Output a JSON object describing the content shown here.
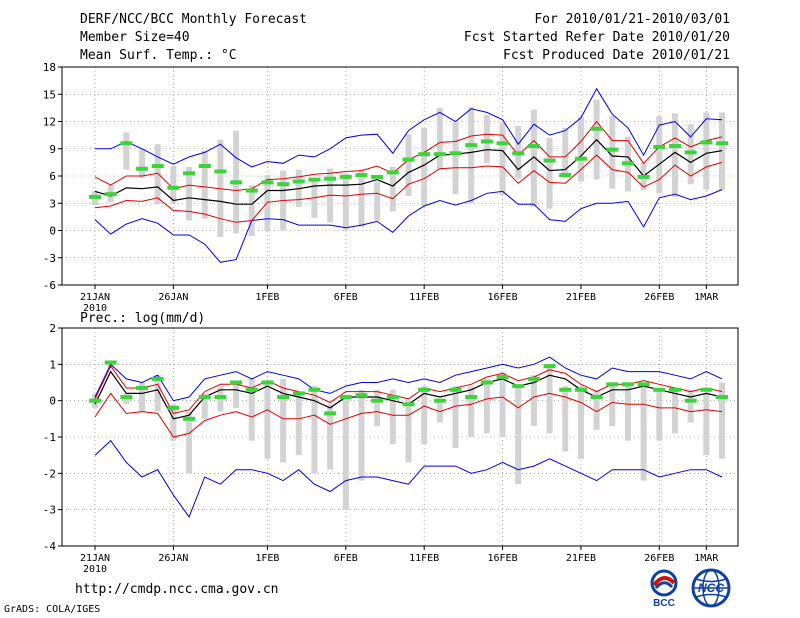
{
  "header": {
    "title": "DERF/NCC/BCC Monthly Forecast",
    "member_size": "Member Size=40",
    "period": "For 2010/01/21-2010/03/01",
    "started": "Fcst Started Refer Date 2010/01/20",
    "produced": "Fcst Produced Date 2010/01/21"
  },
  "footer": {
    "url": "http://cmdp.ncc.cma.gov.cn",
    "credit": "GrADS: COLA/IGES",
    "logo_bcc": "BCC",
    "logo_ncc": "NCC"
  },
  "colors": {
    "spread": "#d3d3d3",
    "obs": "#3cd33c",
    "mean": "#000000",
    "sd": "#dd0000",
    "minmax": "#0000dd"
  },
  "chart_data": [
    {
      "type": "line",
      "title": "Mean Surf. Temp.: °C",
      "ylim": [
        -6,
        18
      ],
      "yticks": [
        -6,
        -3,
        0,
        3,
        6,
        9,
        12,
        15,
        18
      ],
      "xticks": [
        {
          "day": 0,
          "label": "21JAN",
          "sub": "2010"
        },
        {
          "day": 5,
          "label": "26JAN"
        },
        {
          "day": 11,
          "label": "1FEB"
        },
        {
          "day": 16,
          "label": "6FEB"
        },
        {
          "day": 21,
          "label": "11FEB"
        },
        {
          "day": 26,
          "label": "16FEB"
        },
        {
          "day": 31,
          "label": "21FEB"
        },
        {
          "day": 36,
          "label": "26FEB"
        },
        {
          "day": 39,
          "label": "1MAR"
        }
      ],
      "series": [
        {
          "name": "ensemble mean",
          "values": [
            4.3,
            3.8,
            4.7,
            4.6,
            4.8,
            3.3,
            3.6,
            3.4,
            3.2,
            2.9,
            2.9,
            4.4,
            4.4,
            4.6,
            4.9,
            5.0,
            5.0,
            5.1,
            5.6,
            4.9,
            6.4,
            7.2,
            8.3,
            8.4,
            8.6,
            8.9,
            8.8,
            6.7,
            8.1,
            6.6,
            6.7,
            8.2,
            10.0,
            8.2,
            8.1,
            6.0,
            7.3,
            8.6,
            7.5,
            8.5,
            8.8
          ]
        },
        {
          "name": "mean + sd",
          "values": [
            5.9,
            5.0,
            6.0,
            6.0,
            6.3,
            4.6,
            5.0,
            4.8,
            4.6,
            4.4,
            4.6,
            5.6,
            5.7,
            5.9,
            6.2,
            6.3,
            6.5,
            6.6,
            7.1,
            6.3,
            7.8,
            8.6,
            9.7,
            9.8,
            10.4,
            10.6,
            10.5,
            8.3,
            9.9,
            8.1,
            8.1,
            9.8,
            12.0,
            9.9,
            9.9,
            7.4,
            9.2,
            10.2,
            9.2,
            9.9,
            10.3
          ]
        },
        {
          "name": "mean - sd",
          "values": [
            2.5,
            2.7,
            3.3,
            3.2,
            3.6,
            2.2,
            2.1,
            1.8,
            1.3,
            0.9,
            1.1,
            3.1,
            3.3,
            3.4,
            3.6,
            3.9,
            3.8,
            4.0,
            4.1,
            3.5,
            5.1,
            5.7,
            6.8,
            6.9,
            6.9,
            7.1,
            7.0,
            5.2,
            6.6,
            5.3,
            5.2,
            6.7,
            8.3,
            6.7,
            6.4,
            4.8,
            5.6,
            7.2,
            6.0,
            7.0,
            7.5
          ]
        },
        {
          "name": "ensemble max",
          "values": [
            9.0,
            9.0,
            9.8,
            9.0,
            8.1,
            7.3,
            8.1,
            8.6,
            9.5,
            8.0,
            7.0,
            7.6,
            7.4,
            8.3,
            8.1,
            9.0,
            10.2,
            10.5,
            10.6,
            8.5,
            11.0,
            12.2,
            13.0,
            12.0,
            13.4,
            13.0,
            12.2,
            9.5,
            11.7,
            10.5,
            11.0,
            12.4,
            15.6,
            12.8,
            11.3,
            8.3,
            11.6,
            12.0,
            10.3,
            12.3,
            12.2
          ]
        },
        {
          "name": "ensemble min",
          "values": [
            1.2,
            -0.4,
            0.7,
            1.3,
            0.8,
            -0.5,
            -0.5,
            -1.5,
            -3.5,
            -3.2,
            1.1,
            1.3,
            1.2,
            0.6,
            0.6,
            0.6,
            0.3,
            0.6,
            1.0,
            -0.2,
            1.6,
            2.7,
            3.3,
            2.8,
            3.3,
            4.1,
            4.3,
            2.9,
            2.9,
            1.2,
            1.0,
            2.4,
            3.0,
            3.0,
            3.2,
            0.4,
            3.6,
            4.0,
            3.4,
            3.8,
            4.5
          ]
        },
        {
          "name": "spread high",
          "values": [
            4.4,
            5.0,
            10.8,
            9.0,
            9.5,
            7.1,
            7.0,
            8.8,
            10.0,
            11.0,
            5.0,
            6.1,
            6.6,
            6.7,
            5.8,
            6.8,
            6.3,
            6.7,
            5.4,
            7.0,
            10.6,
            11.3,
            13.5,
            11.9,
            13.6,
            12.7,
            11.9,
            11.5,
            13.3,
            10.2,
            11.3,
            12.5,
            14.4,
            12.6,
            10.3,
            7.5,
            12.6,
            12.9,
            11.7,
            13.0,
            13.0
          ]
        },
        {
          "name": "spread low",
          "values": [
            2.8,
            3.1,
            6.7,
            5.8,
            2.9,
            3.0,
            1.1,
            1.3,
            -0.7,
            -0.3,
            -0.6,
            -0.1,
            0.0,
            2.6,
            1.4,
            0.9,
            0.0,
            0.4,
            1.1,
            2.1,
            3.8,
            2.7,
            6.7,
            4.0,
            3.0,
            7.4,
            3.9,
            5.7,
            2.6,
            2.4,
            5.9,
            5.4,
            5.6,
            4.6,
            4.3,
            4.4,
            4.1,
            3.7,
            5.1,
            4.5,
            4.4
          ]
        },
        {
          "name": "observed",
          "values": [
            3.7,
            4.0,
            9.6,
            6.8,
            7.1,
            4.7,
            6.3,
            7.1,
            6.5,
            5.3,
            4.4,
            5.3,
            5.1,
            5.4,
            5.6,
            5.7,
            5.9,
            6.1,
            5.9,
            6.4,
            7.8,
            8.4,
            8.4,
            8.5,
            9.4,
            9.8,
            9.6,
            8.5,
            9.3,
            7.7,
            6.1,
            7.9,
            11.2,
            8.9,
            7.4,
            5.9,
            9.2,
            9.3,
            8.6,
            9.7,
            9.6
          ]
        }
      ]
    },
    {
      "type": "line",
      "title": "Prec.: log(mm/d)",
      "ylim": [
        -4,
        2
      ],
      "yticks": [
        -4,
        -3,
        -2,
        -1,
        0,
        1,
        2
      ],
      "xticks": [
        {
          "day": 0,
          "label": "21JAN",
          "sub": "2010"
        },
        {
          "day": 5,
          "label": "26JAN"
        },
        {
          "day": 11,
          "label": "1FEB"
        },
        {
          "day": 16,
          "label": "6FEB"
        },
        {
          "day": 21,
          "label": "11FEB"
        },
        {
          "day": 26,
          "label": "16FEB"
        },
        {
          "day": 31,
          "label": "21FEB"
        },
        {
          "day": 36,
          "label": "26FEB"
        },
        {
          "day": 39,
          "label": "1MAR"
        }
      ],
      "series": [
        {
          "name": "ensemble mean",
          "values": [
            -0.1,
            0.8,
            0.2,
            0.2,
            0.3,
            -0.5,
            -0.4,
            0.1,
            0.3,
            0.3,
            0.2,
            0.4,
            0.2,
            0.1,
            0.0,
            -0.2,
            0.1,
            0.1,
            0.1,
            0.0,
            -0.1,
            0.2,
            0.1,
            0.2,
            0.3,
            0.5,
            0.6,
            0.4,
            0.5,
            0.7,
            0.6,
            0.3,
            0.1,
            0.3,
            0.3,
            0.4,
            0.3,
            0.2,
            0.1,
            0.2,
            0.1
          ]
        },
        {
          "name": "mean + sd",
          "values": [
            0.05,
            0.95,
            0.35,
            0.35,
            0.45,
            -0.35,
            -0.25,
            0.25,
            0.45,
            0.45,
            0.35,
            0.55,
            0.35,
            0.25,
            0.15,
            -0.05,
            0.25,
            0.25,
            0.25,
            0.15,
            0.05,
            0.35,
            0.25,
            0.35,
            0.45,
            0.65,
            0.75,
            0.55,
            0.65,
            0.85,
            0.75,
            0.45,
            0.25,
            0.45,
            0.45,
            0.55,
            0.45,
            0.35,
            0.25,
            0.35,
            0.25
          ]
        },
        {
          "name": "mean - sd",
          "values": [
            -0.45,
            0.2,
            -0.35,
            -0.3,
            -0.35,
            -1.0,
            -0.9,
            -0.55,
            -0.4,
            -0.3,
            -0.45,
            -0.25,
            -0.5,
            -0.5,
            -0.4,
            -0.65,
            -0.5,
            -0.35,
            -0.3,
            -0.4,
            -0.4,
            -0.15,
            -0.3,
            -0.15,
            -0.1,
            0.05,
            0.1,
            -0.2,
            0.1,
            0.2,
            0.1,
            -0.05,
            -0.3,
            -0.05,
            -0.1,
            -0.1,
            -0.2,
            -0.2,
            -0.3,
            -0.25,
            -0.3
          ]
        },
        {
          "name": "ensemble max",
          "values": [
            0.1,
            1.0,
            0.6,
            0.5,
            0.7,
            0.0,
            0.1,
            0.6,
            0.7,
            0.8,
            0.6,
            0.8,
            0.7,
            0.6,
            0.3,
            0.2,
            0.4,
            0.5,
            0.5,
            0.6,
            0.5,
            0.6,
            0.5,
            0.7,
            0.8,
            0.9,
            1.0,
            0.9,
            1.0,
            1.2,
            0.9,
            0.7,
            0.6,
            0.9,
            0.8,
            0.8,
            0.8,
            0.7,
            0.6,
            0.8,
            0.6
          ]
        },
        {
          "name": "ensemble min",
          "values": [
            -1.5,
            -1.1,
            -1.7,
            -2.1,
            -1.9,
            -2.6,
            -3.2,
            -2.1,
            -2.3,
            -1.9,
            -1.9,
            -2.0,
            -2.2,
            -1.9,
            -2.3,
            -2.5,
            -2.2,
            -2.1,
            -2.1,
            -2.2,
            -2.3,
            -1.8,
            -1.8,
            -1.8,
            -2.0,
            -1.9,
            -1.7,
            -1.9,
            -1.8,
            -1.6,
            -1.8,
            -2.0,
            -2.2,
            -1.9,
            -1.9,
            -1.9,
            -2.1,
            -2.0,
            -1.9,
            -1.9,
            -2.1
          ]
        },
        {
          "name": "spread high",
          "values": [
            0.2,
            1.1,
            0.2,
            0.5,
            0.7,
            -0.1,
            -0.3,
            0.2,
            0.4,
            0.5,
            0.6,
            0.5,
            0.6,
            0.2,
            0.4,
            -0.1,
            0.1,
            0.3,
            0.3,
            0.3,
            0.0,
            0.4,
            0.0,
            0.4,
            0.4,
            0.6,
            0.8,
            0.4,
            0.7,
            1.0,
            0.4,
            0.4,
            0.3,
            0.5,
            0.5,
            0.4,
            0.3,
            0.3,
            0.3,
            0.2,
            0.5
          ]
        },
        {
          "name": "spread low",
          "values": [
            -0.2,
            0.9,
            -0.1,
            -0.3,
            -0.3,
            -1.1,
            -2.0,
            -0.5,
            -0.3,
            -0.2,
            -1.1,
            -1.6,
            -1.7,
            -1.5,
            -2.0,
            -1.9,
            -3.0,
            -2.2,
            -0.7,
            -1.2,
            -1.7,
            -1.2,
            -0.6,
            -1.3,
            -1.0,
            -0.9,
            -1.0,
            -2.3,
            -0.7,
            -0.9,
            -1.4,
            -1.6,
            -0.8,
            -0.7,
            -1.1,
            -2.2,
            -1.1,
            -0.9,
            -0.6,
            -1.5,
            -1.6
          ]
        },
        {
          "name": "observed",
          "values": [
            0.0,
            1.05,
            0.1,
            0.35,
            0.6,
            -0.2,
            -0.5,
            0.1,
            0.1,
            0.5,
            0.3,
            0.5,
            0.1,
            0.2,
            0.3,
            -0.35,
            0.1,
            0.15,
            0.0,
            0.1,
            -0.1,
            0.3,
            0.0,
            0.3,
            0.1,
            0.5,
            0.65,
            0.4,
            0.6,
            0.95,
            0.3,
            0.3,
            0.1,
            0.45,
            0.45,
            0.45,
            0.3,
            0.3,
            0.0,
            0.3,
            0.1
          ]
        }
      ]
    }
  ]
}
